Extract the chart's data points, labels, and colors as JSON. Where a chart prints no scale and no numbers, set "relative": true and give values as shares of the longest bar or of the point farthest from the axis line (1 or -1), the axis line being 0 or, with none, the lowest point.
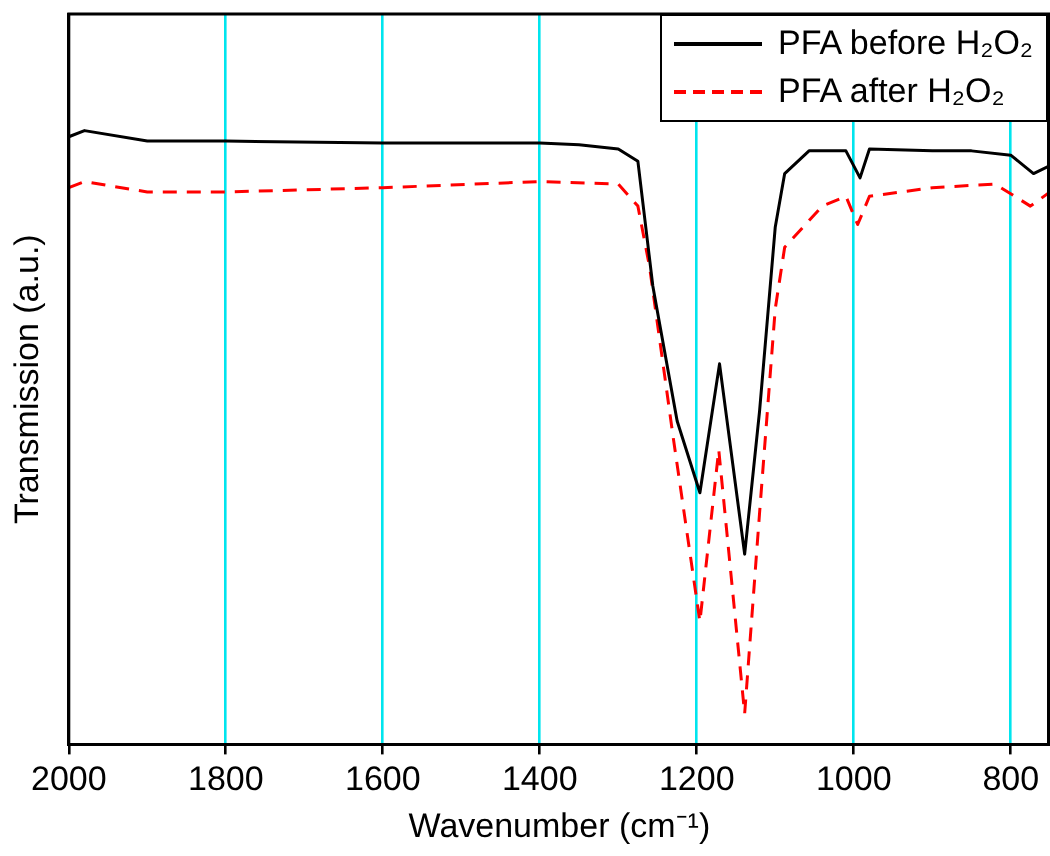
{
  "chart_data": {
    "type": "line",
    "xlabel": "Wavenumber (cm⁻¹)",
    "ylabel": "Transmission (a.u.)",
    "relative": true,
    "xlim": [
      2000,
      750
    ],
    "xticks": [
      2000,
      1800,
      1600,
      1400,
      1200,
      1000,
      800
    ],
    "grid": "x",
    "legend": "top right",
    "marker": "none",
    "series": [
      {
        "name": "PFA before H₂O₂",
        "color": "#000000",
        "line_style": "solid",
        "x": [
          2000,
          1980,
          1900,
          1800,
          1600,
          1400,
          1350,
          1300,
          1275,
          1256,
          1225,
          1196,
          1171,
          1139,
          1120,
          1100,
          1088,
          1057,
          1010,
          992,
          980,
          900,
          850,
          800,
          771,
          750
        ],
        "values": [
          0.99,
          1.0,
          0.983,
          0.983,
          0.98,
          0.98,
          0.977,
          0.97,
          0.95,
          0.747,
          0.527,
          0.41,
          0.62,
          0.31,
          0.543,
          0.843,
          0.93,
          0.967,
          0.967,
          0.923,
          0.97,
          0.967,
          0.967,
          0.96,
          0.93,
          0.943
        ]
      },
      {
        "name": "PFA after H₂O₂",
        "color": "#ff0000",
        "line_style": "dashed",
        "x": [
          2000,
          1980,
          1900,
          1800,
          1600,
          1400,
          1300,
          1275,
          1260,
          1230,
          1196,
          1172,
          1139,
          1120,
          1100,
          1088,
          1040,
          1010,
          995,
          980,
          900,
          820,
          775,
          750
        ],
        "values": [
          0.907,
          0.917,
          0.9,
          0.9,
          0.907,
          0.917,
          0.913,
          0.877,
          0.777,
          0.5,
          0.2,
          0.48,
          0.05,
          0.377,
          0.71,
          0.81,
          0.877,
          0.893,
          0.847,
          0.893,
          0.907,
          0.913,
          0.877,
          0.9
        ]
      }
    ]
  }
}
